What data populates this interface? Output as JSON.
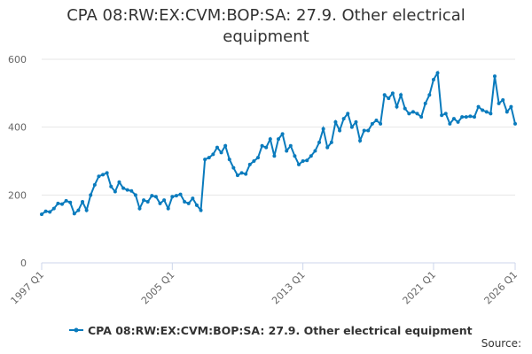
{
  "chart_data": {
    "type": "line",
    "title": "CPA 08:RW:EX:CVM:BOP:SA: 27.9. Other electrical equipment",
    "source": "Source:",
    "categories": [
      "1997 Q1",
      null,
      null,
      null,
      null,
      null,
      null,
      null,
      null,
      null,
      null,
      null,
      null,
      null,
      null,
      null,
      null,
      null,
      null,
      null,
      null,
      null,
      null,
      null,
      null,
      null,
      null,
      null,
      null,
      null,
      null,
      null,
      "2005 Q1",
      null,
      null,
      null,
      null,
      null,
      null,
      null,
      null,
      null,
      null,
      null,
      null,
      null,
      null,
      null,
      null,
      null,
      null,
      null,
      null,
      null,
      null,
      null,
      null,
      null,
      null,
      null,
      null,
      null,
      null,
      null,
      "2013 Q1",
      null,
      null,
      null,
      null,
      null,
      null,
      null,
      null,
      null,
      null,
      null,
      null,
      null,
      null,
      null,
      null,
      null,
      null,
      null,
      null,
      null,
      null,
      null,
      null,
      null,
      null,
      null,
      null,
      null,
      null,
      null,
      "2021 Q1",
      null,
      null,
      null,
      null,
      null,
      null,
      null,
      null,
      null,
      null,
      null,
      null,
      null,
      null,
      null,
      null,
      null,
      null,
      null,
      "2026 Q1"
    ],
    "series": [
      {
        "name": "CPA 08:RW:EX:CVM:BOP:SA: 27.9. Other electrical equipment",
        "color": "#0a7bbd",
        "values": [
          143,
          152,
          150,
          160,
          175,
          173,
          183,
          178,
          145,
          155,
          180,
          155,
          200,
          230,
          255,
          260,
          265,
          225,
          210,
          238,
          220,
          215,
          212,
          200,
          160,
          185,
          180,
          198,
          195,
          175,
          185,
          160,
          195,
          198,
          202,
          180,
          175,
          190,
          170,
          155,
          305,
          310,
          320,
          340,
          325,
          345,
          305,
          280,
          258,
          265,
          262,
          290,
          300,
          310,
          345,
          340,
          365,
          315,
          365,
          380,
          330,
          345,
          315,
          290,
          300,
          302,
          315,
          330,
          355,
          395,
          340,
          355,
          415,
          390,
          425,
          440,
          400,
          415,
          360,
          390,
          390,
          410,
          420,
          410,
          495,
          485,
          500,
          460,
          495,
          455,
          440,
          445,
          440,
          430,
          470,
          495,
          540,
          560,
          435,
          440,
          410,
          425,
          415,
          430,
          430,
          432,
          430,
          460,
          450,
          445,
          440,
          550,
          470,
          480,
          445,
          460,
          410
        ]
      }
    ],
    "ylim": [
      0,
      600
    ],
    "yticks": [
      0,
      200,
      400,
      600
    ],
    "grid": true
  }
}
